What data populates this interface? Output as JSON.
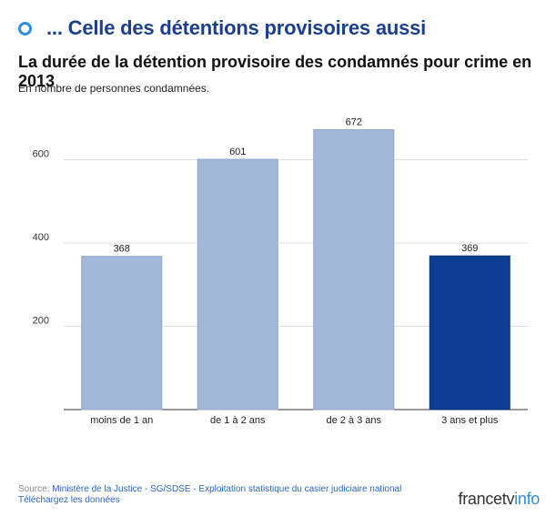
{
  "headline": "... Celle des détentions provisoires aussi",
  "source_label": "Source:",
  "source_text": "Ministère de la Justice - SG/SDSE - Exploitation statistique du casier judiciaire national",
  "download_text": "Téléchargez les données",
  "logo": {
    "part1": "francetv",
    "part2": "info"
  },
  "colors": {
    "bar": "#a3b8d8",
    "highlight": "#0e3c92",
    "headline": "#1b3f8e",
    "accent": "#2f8de4"
  },
  "chart_data": {
    "type": "bar",
    "title": "La durée de la détention provisoire des condamnés pour crime en 2013",
    "subtitle": "En nombre de personnes condamnées.",
    "categories": [
      "moins de 1 an",
      "de 1 à 2 ans",
      "de 2 à 3 ans",
      "3 ans et plus"
    ],
    "values": [
      368,
      601,
      672,
      369
    ],
    "highlight_index": 3,
    "yticks": [
      200,
      400,
      600
    ],
    "ylim": [
      0,
      700
    ],
    "grid": true
  }
}
